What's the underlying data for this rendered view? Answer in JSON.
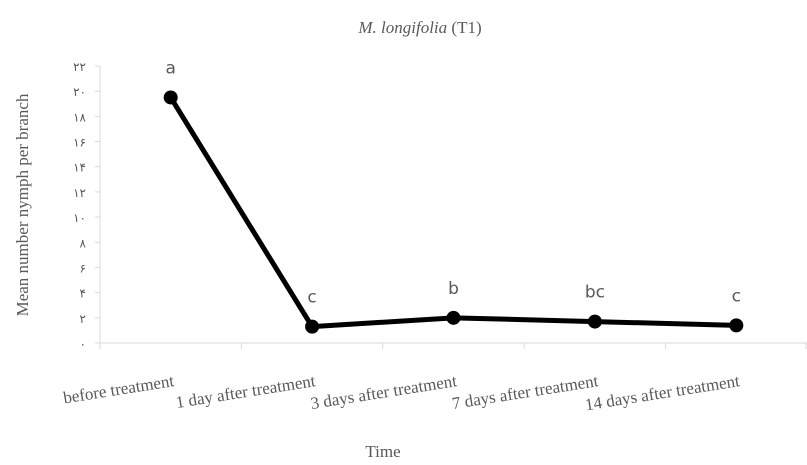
{
  "chart_data": {
    "type": "line",
    "title": [
      "M. longifolia",
      "(T1)"
    ],
    "xlabel": "Time",
    "ylabel": "Mean number nymph per branch",
    "categories": [
      "before treatment",
      "1 day after treatment",
      "3 days after treatment",
      "7 days after treatment",
      "14 days after treatment"
    ],
    "series": [
      {
        "color": "#000000",
        "values": [
          19.5,
          1.3,
          2.0,
          1.7,
          1.4
        ]
      }
    ],
    "annotations": [
      "a",
      "c",
      "b",
      "bc",
      "c"
    ],
    "ylim": [
      0,
      22
    ],
    "yticks": [
      {
        "value": 0,
        "label": "۰"
      },
      {
        "value": 2,
        "label": "۲"
      },
      {
        "value": 4,
        "label": "۴"
      },
      {
        "value": 6,
        "label": "۶"
      },
      {
        "value": 8,
        "label": "۸"
      },
      {
        "value": 10,
        "label": "۱۰"
      },
      {
        "value": 12,
        "label": "۱۲"
      },
      {
        "value": 14,
        "label": "۱۴"
      },
      {
        "value": 16,
        "label": "۱۶"
      },
      {
        "value": 18,
        "label": "۱۸"
      },
      {
        "value": 20,
        "label": "۲۰"
      },
      {
        "value": 22,
        "label": "۲۲"
      }
    ],
    "grid": false
  }
}
